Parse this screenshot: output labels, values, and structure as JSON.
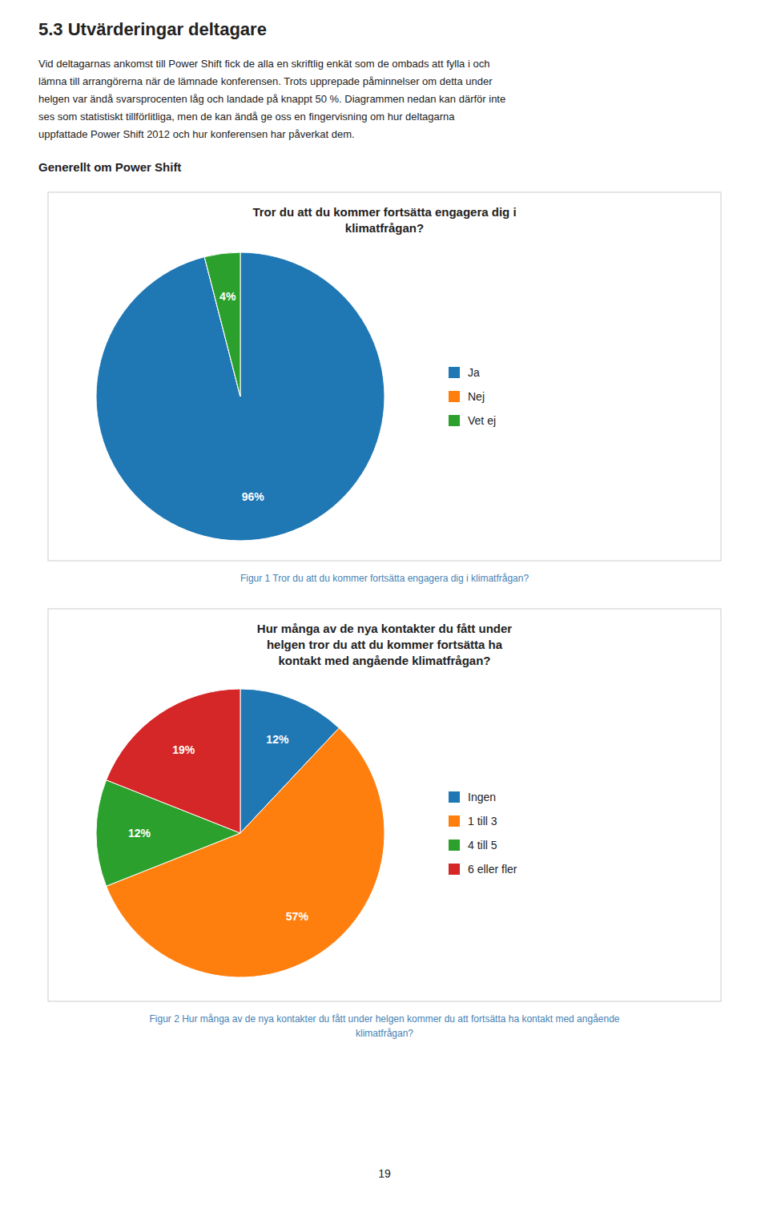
{
  "page_title": "5.3 Utvärderingar deltagare",
  "body": [
    "Vid deltagarnas ankomst till Power Shift fick de alla en skriftlig enkät som de ombads att fylla i och",
    "lämna till arrangörerna när de lämnade konferensen. Trots upprepade påminnelser om detta under",
    "helgen var ändå svarsprocenten låg och landade på knappt 50 %. Diagrammen nedan kan därför inte",
    "ses som statistiskt tillförlitliga, men de kan ändå ge oss en fingervisning om hur deltagarna",
    "uppfattade Power Shift 2012 och hur konferensen har påverkat dem."
  ],
  "section_label": "Generellt om Power Shift",
  "page_number": "19",
  "chart_data": [
    {
      "type": "pie",
      "title": "Tror du att du kommer fortsätta engagera dig i\nklimatfrågan?",
      "categories": [
        "Ja",
        "Nej",
        "Vet ej"
      ],
      "values": [
        96,
        0.001,
        4
      ],
      "value_labels": [
        "96%",
        null,
        "4%"
      ],
      "data_labels": true,
      "legend": "right",
      "annotations": [
        "Figur 1 Tror du att du kommer fortsätta engagera dig i klimatfrågan?"
      ]
    },
    {
      "type": "pie",
      "title": "Hur många av de nya kontakter du fått under\nhelgen tror du att du kommer fortsätta ha\nkontakt med angående klimatfrågan?",
      "categories": [
        "Ingen",
        "1 till 3",
        "4 till 5",
        "6 eller fler"
      ],
      "values": [
        12,
        57,
        12,
        19
      ],
      "value_labels": [
        "12%",
        "57%",
        "12%",
        "19%"
      ],
      "data_labels": true,
      "legend": "right",
      "annotations": [
        "Figur 2 Hur många av de nya kontakter du fått under helgen kommer du att fortsätta ha kontakt med angående",
        "klimatfrågan?"
      ]
    }
  ]
}
